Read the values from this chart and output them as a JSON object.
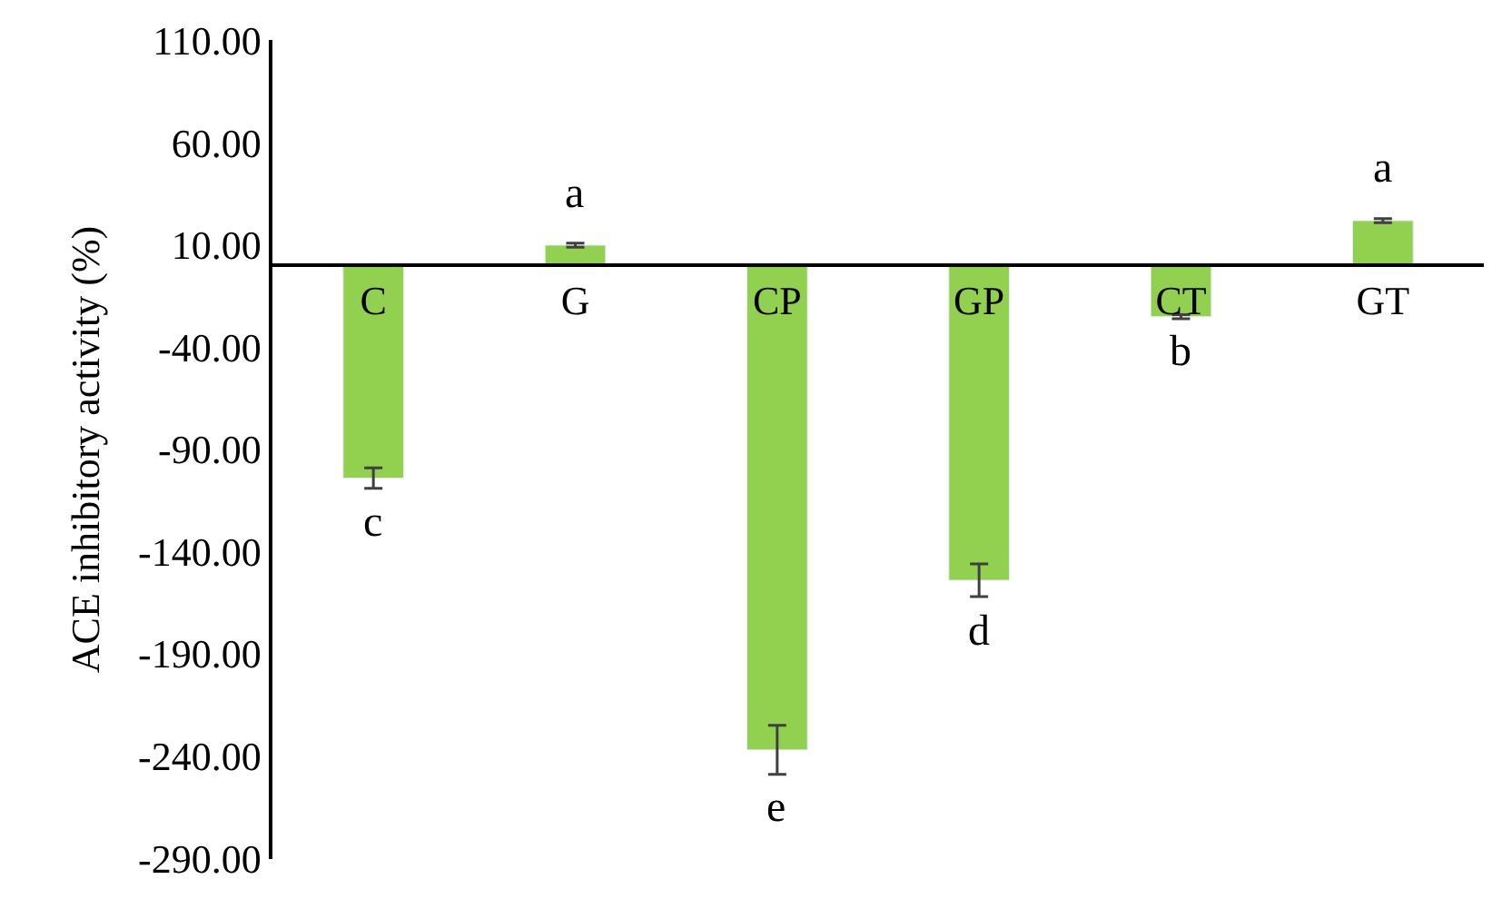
{
  "chart_data": {
    "type": "bar",
    "ylabel": "ACE inhibitory activity (%)",
    "categories": [
      "C",
      "G",
      "CP",
      "GP",
      "CT",
      "GT"
    ],
    "series": [
      {
        "color": "#92d050",
        "values": [
          -104,
          10,
          -237,
          -154,
          -25,
          22
        ],
        "errors": [
          5,
          1,
          12,
          8,
          1,
          1
        ]
      }
    ],
    "ylim": [
      -290,
      110
    ],
    "yticks": [
      {
        "value": 110,
        "label": "110.00"
      },
      {
        "value": 60,
        "label": "60.00"
      },
      {
        "value": 10,
        "label": "10.00"
      },
      {
        "value": -40,
        "label": "-40.00"
      },
      {
        "value": -90,
        "label": "-90.00"
      },
      {
        "value": -140,
        "label": "-140.00"
      },
      {
        "value": -190,
        "label": "-190.00"
      },
      {
        "value": -240,
        "label": "-240.00"
      },
      {
        "value": -290,
        "label": "-290.00"
      }
    ],
    "annotations": [
      "c",
      "a",
      "e",
      "d",
      "b",
      "a"
    ]
  }
}
